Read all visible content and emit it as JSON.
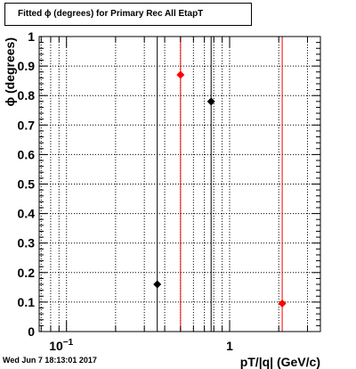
{
  "chart_data": {
    "type": "scatter",
    "title": "Fitted ϕ (degrees) for Primary Rec All EtapT",
    "xlabel": "pT/|q| (GeV/c)",
    "ylabel": "ϕ (degrees)",
    "x_scale": "log",
    "xlim": [
      0.068,
      3.6
    ],
    "ylim": [
      0,
      1
    ],
    "grid": true,
    "y_tick_labels": [
      "0",
      "0.1",
      "0.2",
      "0.3",
      "0.4",
      "0.5",
      "0.6",
      "0.7",
      "0.8",
      "0.9",
      "1"
    ],
    "x_tick_labels": [
      {
        "value": 0.1,
        "base": "10",
        "exp": "−1"
      },
      {
        "value": 1,
        "base": "1",
        "exp": ""
      }
    ],
    "series": [
      {
        "color": "#000000",
        "points": [
          {
            "x": 0.36,
            "y": 0.16
          },
          {
            "x": 0.77,
            "y": 0.78
          }
        ],
        "vlines": [
          0.36,
          0.77
        ]
      },
      {
        "color": "#ff0000",
        "points": [
          {
            "x": 0.5,
            "y": 0.87
          },
          {
            "x": 2.1,
            "y": 0.095
          }
        ],
        "vlines": [
          0.5,
          2.1
        ]
      }
    ]
  },
  "footer": {
    "timestamp": "Wed Jun  7 18:13:01 2017"
  }
}
